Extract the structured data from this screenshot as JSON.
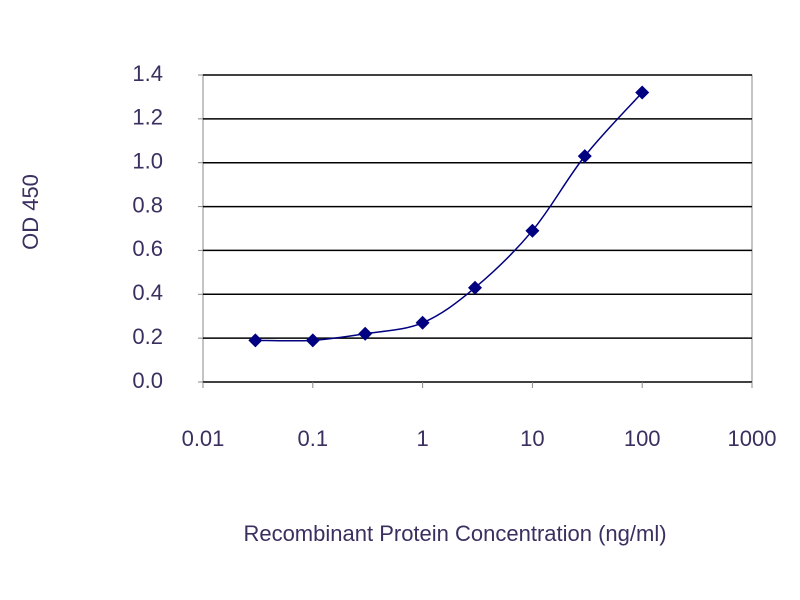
{
  "chart_data": {
    "type": "line",
    "x_label": "Recombinant Protein Concentration (ng/ml)",
    "y_label": "OD 450",
    "x": [
      0.03,
      0.1,
      0.3,
      1,
      3,
      10,
      30,
      100
    ],
    "series": [
      {
        "color": "#000080",
        "values": [
          0.19,
          0.19,
          0.22,
          0.27,
          0.43,
          0.69,
          1.03,
          1.32
        ]
      }
    ],
    "xscale": "log",
    "xlim": [
      0.01,
      1000
    ],
    "xticks": [
      0.01,
      0.1,
      1,
      10,
      100,
      1000
    ],
    "ylim": [
      0,
      1.4
    ],
    "yticks": [
      {
        "value": 0,
        "label": "0.0"
      },
      0.2,
      0.4,
      0.6,
      0.8,
      {
        "value": 1,
        "label": "1.0"
      },
      1.2,
      1.4
    ],
    "grid": true
  }
}
